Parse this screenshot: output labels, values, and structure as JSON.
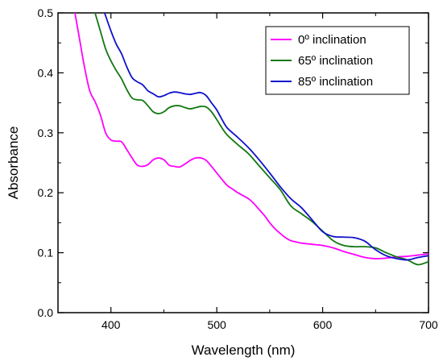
{
  "chart_data": {
    "type": "line",
    "title": "",
    "xlabel": "Wavelength (nm)",
    "ylabel": "Absorbance",
    "xlim": [
      350,
      700
    ],
    "ylim": [
      0.0,
      0.5
    ],
    "x_ticks": [
      400,
      500,
      600,
      700
    ],
    "y_ticks": [
      0.0,
      0.1,
      0.2,
      0.3,
      0.4,
      0.5
    ],
    "x_tick_labels": [
      "400",
      "500",
      "600",
      "700"
    ],
    "y_tick_labels": [
      "0.0",
      "0.1",
      "0.2",
      "0.3",
      "0.4",
      "0.5"
    ],
    "grid": false,
    "legend_position": "top-right",
    "series": [
      {
        "name": "0º inclination",
        "color": "#ff00ff",
        "x": [
          366,
          370,
          375,
          380,
          385,
          390,
          395,
          400,
          405,
          410,
          415,
          420,
          425,
          430,
          435,
          440,
          445,
          450,
          455,
          460,
          465,
          470,
          475,
          480,
          485,
          490,
          495,
          500,
          505,
          510,
          515,
          520,
          525,
          530,
          535,
          540,
          545,
          550,
          555,
          560,
          565,
          570,
          575,
          580,
          590,
          600,
          610,
          620,
          630,
          640,
          650,
          660,
          670,
          680,
          690,
          700
        ],
        "y": [
          0.5,
          0.46,
          0.41,
          0.37,
          0.352,
          0.33,
          0.3,
          0.288,
          0.286,
          0.285,
          0.272,
          0.258,
          0.246,
          0.244,
          0.247,
          0.255,
          0.258,
          0.255,
          0.246,
          0.244,
          0.243,
          0.248,
          0.254,
          0.258,
          0.258,
          0.254,
          0.244,
          0.233,
          0.222,
          0.212,
          0.206,
          0.2,
          0.195,
          0.19,
          0.182,
          0.172,
          0.162,
          0.15,
          0.14,
          0.132,
          0.125,
          0.12,
          0.118,
          0.116,
          0.114,
          0.112,
          0.108,
          0.102,
          0.097,
          0.092,
          0.09,
          0.091,
          0.093,
          0.094,
          0.096,
          0.098
        ]
      },
      {
        "name": "65º inclination",
        "color": "#117811",
        "x": [
          385,
          390,
          395,
          400,
          405,
          410,
          415,
          420,
          425,
          430,
          435,
          440,
          445,
          450,
          455,
          460,
          465,
          470,
          475,
          480,
          485,
          490,
          495,
          500,
          505,
          510,
          520,
          530,
          540,
          550,
          560,
          570,
          580,
          590,
          600,
          610,
          620,
          630,
          640,
          650,
          660,
          670,
          680,
          690,
          700
        ],
        "y": [
          0.5,
          0.47,
          0.44,
          0.42,
          0.404,
          0.39,
          0.372,
          0.358,
          0.355,
          0.354,
          0.345,
          0.335,
          0.332,
          0.335,
          0.342,
          0.345,
          0.345,
          0.342,
          0.34,
          0.342,
          0.344,
          0.343,
          0.335,
          0.322,
          0.308,
          0.296,
          0.28,
          0.265,
          0.245,
          0.225,
          0.205,
          0.178,
          0.165,
          0.152,
          0.136,
          0.12,
          0.112,
          0.11,
          0.11,
          0.108,
          0.1,
          0.093,
          0.088,
          0.08,
          0.085
        ]
      },
      {
        "name": "85º inclination",
        "color": "#1010cc",
        "x": [
          394,
          400,
          405,
          410,
          415,
          420,
          425,
          430,
          435,
          440,
          445,
          450,
          455,
          460,
          465,
          470,
          475,
          480,
          485,
          490,
          495,
          500,
          505,
          510,
          520,
          530,
          540,
          550,
          560,
          570,
          580,
          590,
          600,
          610,
          620,
          630,
          640,
          650,
          660,
          670,
          680,
          690,
          700
        ],
        "y": [
          0.5,
          0.47,
          0.448,
          0.432,
          0.41,
          0.392,
          0.385,
          0.38,
          0.37,
          0.365,
          0.36,
          0.362,
          0.366,
          0.368,
          0.367,
          0.365,
          0.364,
          0.366,
          0.367,
          0.362,
          0.35,
          0.338,
          0.322,
          0.308,
          0.292,
          0.275,
          0.255,
          0.233,
          0.21,
          0.19,
          0.175,
          0.155,
          0.135,
          0.127,
          0.126,
          0.125,
          0.119,
          0.105,
          0.095,
          0.09,
          0.088,
          0.092,
          0.095
        ]
      }
    ]
  }
}
